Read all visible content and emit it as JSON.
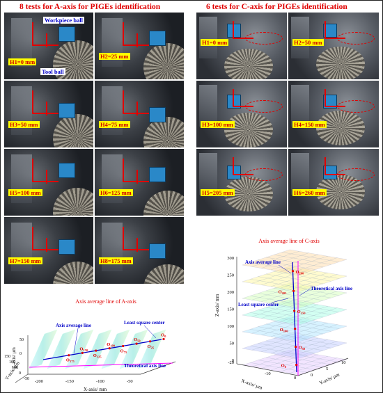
{
  "left_panel": {
    "title": "8 tests for A-axis for PIGEs identification",
    "labels": [
      "H1=0 mm",
      "H2=25 mm",
      "H3=50 mm",
      "H4=75 mm",
      "H5=100 mm",
      "H6=125 mm",
      "H7=150 mm",
      "H8=175 mm"
    ],
    "callouts": {
      "workpiece": "Workpiece ball",
      "tool": "Tool ball"
    }
  },
  "right_panel": {
    "title": "6 tests for C-axis for PIGEs identification",
    "labels": [
      "H1=0 mm",
      "H2=50 mm",
      "H3=100 mm",
      "H4=150 mm",
      "H5=205 mm",
      "H6=260 mm"
    ]
  },
  "chart_a": {
    "title": "Axis average line of A-axis",
    "annotations": {
      "avg": "Axis average line",
      "lsc": "Least square center",
      "theo": "Theoretical axis line"
    },
    "x_label": "X-axis/ mm",
    "y_label": "Y-axis/ μm",
    "z_label": "Z-axis/ μm",
    "x_ticks": [
      "-200",
      "-150",
      "-100",
      "-50"
    ],
    "y_ticks": [
      "150",
      "100",
      "50",
      "0",
      "-50"
    ],
    "z_ticks": [
      "50",
      "0"
    ],
    "point_labels": [
      {
        "base": "O",
        "sub": "175"
      },
      {
        "base": "O",
        "sub": "150"
      },
      {
        "base": "O",
        "sub": "125"
      },
      {
        "base": "O",
        "sub": "100"
      },
      {
        "base": "O",
        "sub": "75"
      },
      {
        "base": "O",
        "sub": "50"
      },
      {
        "base": "O",
        "sub": "25"
      },
      {
        "base": "O",
        "sub": "0"
      }
    ]
  },
  "chart_c": {
    "title": "Axis average line of C-axis",
    "annotations": {
      "avg": "Axis average line",
      "lsc": "Least square center",
      "theo": "Theoretical axis line"
    },
    "x_label": "X-axis/ μm",
    "y_label": "Y-axis/ μm",
    "z_label": "Z-axis/ mm",
    "z_ticks": [
      "300",
      "250",
      "200",
      "150",
      "100",
      "50",
      "0",
      "-20"
    ],
    "x_ticks": [
      "-10",
      "0"
    ],
    "y_ticks": [
      "0",
      "5",
      "10"
    ],
    "point_labels": [
      {
        "base": "O",
        "sub": "260"
      },
      {
        "base": "O",
        "sub": "205"
      },
      {
        "base": "O",
        "sub": "150"
      },
      {
        "base": "O",
        "sub": "100"
      },
      {
        "base": "O",
        "sub": "50"
      },
      {
        "base": "O",
        "sub": "0"
      }
    ]
  },
  "chart_data": [
    {
      "type": "line",
      "title": "Axis average line of A-axis",
      "xlabel": "X-axis/ mm",
      "ylabel": "Y-axis/ μm",
      "zlabel": "Z-axis/ μm",
      "point_labels": [
        "O175",
        "O150",
        "O125",
        "O100",
        "O75",
        "O50",
        "O25",
        "O0"
      ],
      "x": [
        -175,
        -150,
        -125,
        -100,
        -75,
        -50,
        -25,
        0
      ],
      "xlim": [
        -225,
        0
      ]
    },
    {
      "type": "line",
      "title": "Axis average line of C-axis",
      "xlabel": "X-axis/ μm",
      "ylabel": "Y-axis/ μm",
      "zlabel": "Z-axis/ mm",
      "point_labels": [
        "O260",
        "O205",
        "O150",
        "O100",
        "O50",
        "O0"
      ],
      "z": [
        260,
        205,
        150,
        100,
        50,
        0
      ],
      "zlim": [
        -20,
        300
      ]
    }
  ]
}
